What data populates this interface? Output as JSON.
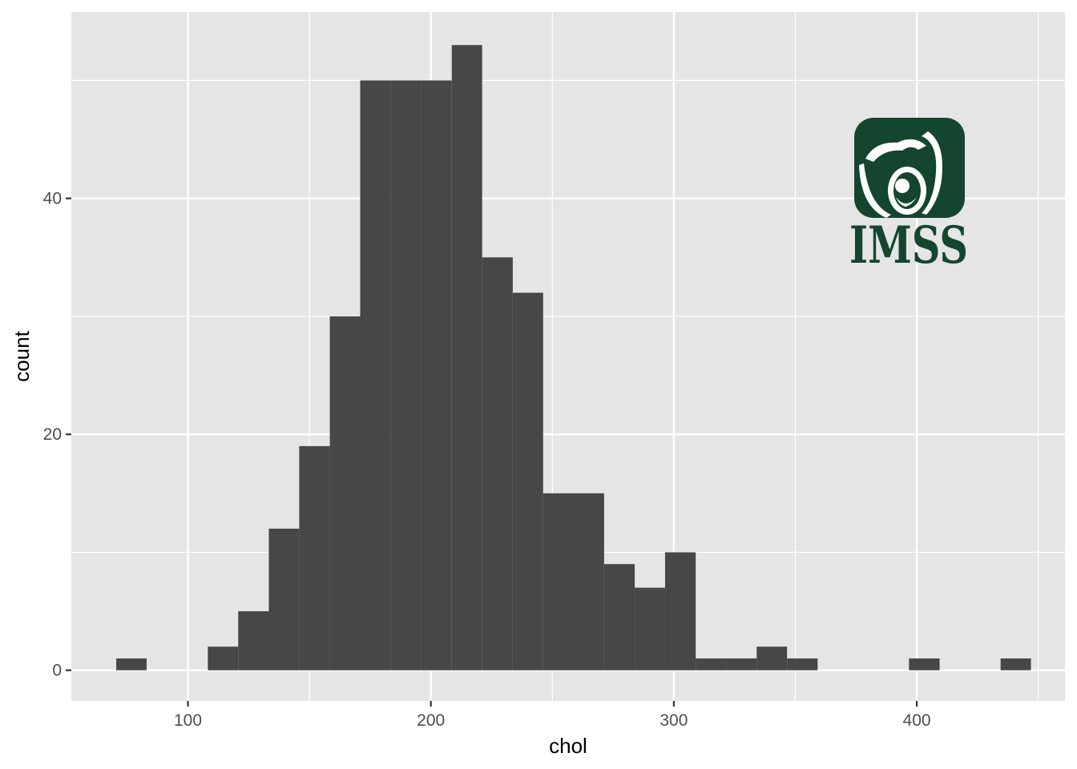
{
  "chart_data": {
    "type": "bar",
    "subtype": "histogram",
    "title": "",
    "xlabel": "chol",
    "ylabel": "count",
    "xlim": [
      52,
      461
    ],
    "ylim": [
      -2.6,
      55.8
    ],
    "x_ticks": [
      100,
      200,
      300,
      400
    ],
    "x_minor_ticks": [
      150,
      250,
      350,
      450
    ],
    "y_ticks": [
      0,
      20,
      40
    ],
    "y_minor_ticks": [
      10,
      30,
      50
    ],
    "grid": true,
    "legend": "none",
    "bins": [
      {
        "x0": 70.5,
        "x1": 83.0,
        "count": 1
      },
      {
        "x0": 83.0,
        "x1": 95.6,
        "count": 0
      },
      {
        "x0": 95.6,
        "x1": 108.2,
        "count": 0
      },
      {
        "x0": 108.2,
        "x1": 120.7,
        "count": 2
      },
      {
        "x0": 120.7,
        "x1": 133.3,
        "count": 5
      },
      {
        "x0": 133.3,
        "x1": 145.8,
        "count": 12
      },
      {
        "x0": 145.8,
        "x1": 158.4,
        "count": 19
      },
      {
        "x0": 158.4,
        "x1": 170.9,
        "count": 30
      },
      {
        "x0": 170.9,
        "x1": 183.5,
        "count": 50
      },
      {
        "x0": 183.5,
        "x1": 196.0,
        "count": 50
      },
      {
        "x0": 196.0,
        "x1": 208.6,
        "count": 50
      },
      {
        "x0": 208.6,
        "x1": 221.1,
        "count": 53
      },
      {
        "x0": 221.1,
        "x1": 233.7,
        "count": 35
      },
      {
        "x0": 233.7,
        "x1": 246.2,
        "count": 32
      },
      {
        "x0": 246.2,
        "x1": 258.8,
        "count": 15
      },
      {
        "x0": 258.8,
        "x1": 271.3,
        "count": 15
      },
      {
        "x0": 271.3,
        "x1": 283.9,
        "count": 9
      },
      {
        "x0": 283.9,
        "x1": 296.4,
        "count": 7
      },
      {
        "x0": 296.4,
        "x1": 309.0,
        "count": 10
      },
      {
        "x0": 309.0,
        "x1": 321.5,
        "count": 1
      },
      {
        "x0": 321.5,
        "x1": 334.1,
        "count": 1
      },
      {
        "x0": 334.1,
        "x1": 346.6,
        "count": 2
      },
      {
        "x0": 346.6,
        "x1": 359.2,
        "count": 1
      },
      {
        "x0": 359.2,
        "x1": 371.7,
        "count": 0
      },
      {
        "x0": 371.7,
        "x1": 384.3,
        "count": 0
      },
      {
        "x0": 384.3,
        "x1": 396.8,
        "count": 0
      },
      {
        "x0": 396.8,
        "x1": 409.4,
        "count": 1
      },
      {
        "x0": 409.4,
        "x1": 421.9,
        "count": 0
      },
      {
        "x0": 421.9,
        "x1": 434.5,
        "count": 0
      },
      {
        "x0": 434.5,
        "x1": 447.0,
        "count": 1
      }
    ],
    "colors": {
      "panel": "#e5e5e5",
      "grid": "#ffffff",
      "bar": "#474747",
      "tick": "#333333"
    }
  },
  "logo": {
    "text": "IMSS",
    "color": "#14452f",
    "icon": "imss-eagle-mother-child-emblem"
  }
}
